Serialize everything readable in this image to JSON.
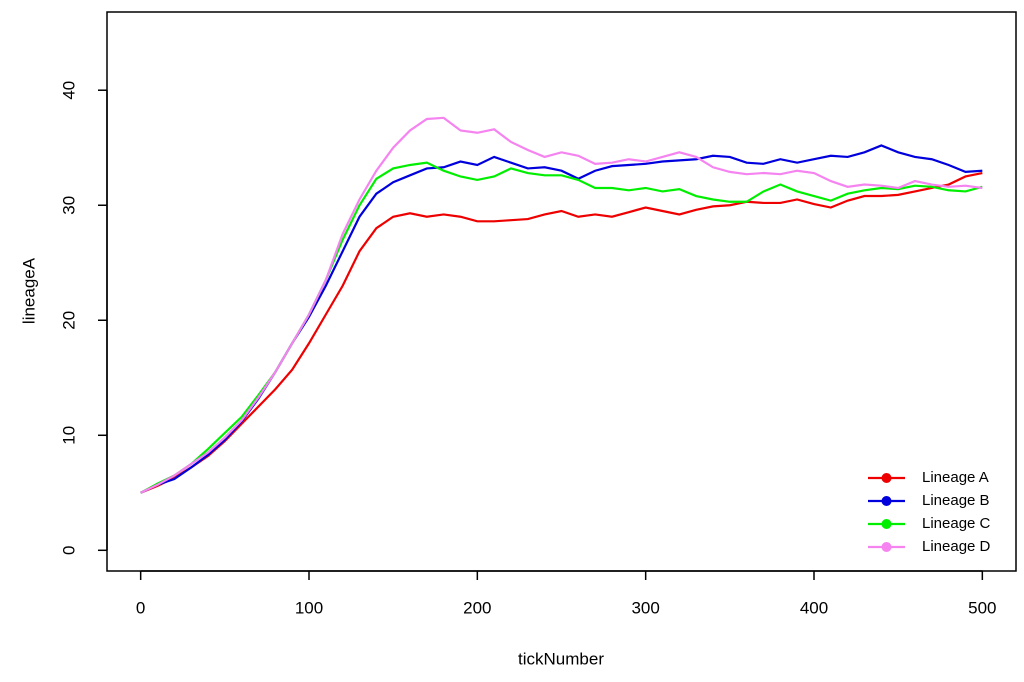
{
  "chart_data": {
    "type": "line",
    "xlabel": "tickNumber",
    "ylabel": "lineageA",
    "x": [
      0,
      10,
      20,
      30,
      40,
      50,
      60,
      70,
      80,
      90,
      100,
      110,
      120,
      130,
      140,
      150,
      160,
      170,
      180,
      190,
      200,
      210,
      220,
      230,
      240,
      250,
      260,
      270,
      280,
      290,
      300,
      310,
      320,
      330,
      340,
      350,
      360,
      370,
      380,
      390,
      400,
      410,
      420,
      430,
      440,
      450,
      460,
      470,
      480,
      490,
      500
    ],
    "xlim": [
      -20,
      520
    ],
    "xticks": [
      0,
      100,
      200,
      300,
      400,
      500
    ],
    "ylim": [
      -1.8,
      46.8
    ],
    "yticks": [
      0,
      10,
      20,
      30,
      40
    ],
    "legend": "bottomright",
    "series": [
      {
        "name": "Lineage A",
        "color": "#ee0000",
        "values": [
          5,
          5.6,
          6.3,
          7.2,
          8.2,
          9.5,
          11,
          12.5,
          14,
          15.7,
          18,
          20.5,
          23,
          26,
          28,
          29,
          29.3,
          29,
          29.2,
          29,
          28.6,
          28.6,
          28.7,
          28.8,
          29.2,
          29.5,
          29,
          29.2,
          29,
          29.4,
          29.8,
          29.5,
          29.2,
          29.6,
          29.9,
          30,
          30.3,
          30.2,
          30.2,
          30.5,
          30.1,
          29.8,
          30.4,
          30.8,
          30.8,
          30.9,
          31.2,
          31.5,
          31.8,
          32.5,
          32.8
        ]
      },
      {
        "name": "Lineage B",
        "color": "#0000dd",
        "values": [
          5,
          5.7,
          6.2,
          7.2,
          8.3,
          9.6,
          11.2,
          13.2,
          15.5,
          18,
          20.3,
          23,
          26,
          29,
          31,
          32,
          32.6,
          33.2,
          33.3,
          33.8,
          33.5,
          34.2,
          33.7,
          33.2,
          33.3,
          33,
          32.3,
          33,
          33.4,
          33.5,
          33.6,
          33.8,
          33.9,
          34,
          34.3,
          34.2,
          33.7,
          33.6,
          34,
          33.7,
          34,
          34.3,
          34.2,
          34.6,
          35.2,
          34.6,
          34.2,
          34,
          33.5,
          32.9,
          33
        ]
      },
      {
        "name": "Lineage C",
        "color": "#00ee00",
        "values": [
          5,
          5.8,
          6.5,
          7.5,
          8.8,
          10.2,
          11.6,
          13.5,
          15.5,
          18,
          20.5,
          23.5,
          27,
          30,
          32.3,
          33.2,
          33.5,
          33.7,
          33,
          32.5,
          32.2,
          32.5,
          33.2,
          32.8,
          32.6,
          32.6,
          32.2,
          31.5,
          31.5,
          31.3,
          31.5,
          31.2,
          31.4,
          30.8,
          30.5,
          30.3,
          30.3,
          31.2,
          31.8,
          31.2,
          30.8,
          30.4,
          31,
          31.3,
          31.5,
          31.4,
          31.7,
          31.6,
          31.3,
          31.2,
          31.6
        ]
      },
      {
        "name": "Lineage D",
        "color": "#f583f0",
        "values": [
          5,
          5.7,
          6.5,
          7.5,
          8.5,
          9.8,
          11.3,
          13.3,
          15.5,
          18,
          20.5,
          23.5,
          27.5,
          30.5,
          33,
          35,
          36.5,
          37.5,
          37.6,
          36.5,
          36.3,
          36.6,
          35.5,
          34.8,
          34.2,
          34.6,
          34.3,
          33.6,
          33.7,
          34,
          33.8,
          34.2,
          34.6,
          34.2,
          33.3,
          32.9,
          32.7,
          32.8,
          32.7,
          33,
          32.8,
          32.1,
          31.6,
          31.8,
          31.7,
          31.5,
          32.1,
          31.8,
          31.6,
          31.7,
          31.5
        ]
      }
    ]
  }
}
